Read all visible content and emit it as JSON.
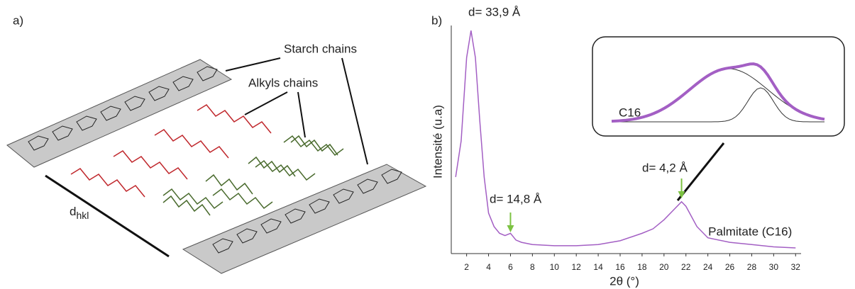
{
  "panel_a": {
    "label": "a)",
    "starch_label": "Starch chains",
    "alkyl_label": "Alkyls chains",
    "distance_symbol": "d",
    "distance_subscript": "hkl"
  },
  "chart_data": {
    "type": "line",
    "panel_label": "b)",
    "ylabel": "Intensité (u.a)",
    "xlabel": "2θ (°)",
    "x": [
      1,
      1.5,
      2,
      2.4,
      2.8,
      3.2,
      3.6,
      4,
      4.5,
      5,
      5.5,
      6,
      6.5,
      7,
      8,
      10,
      12,
      14,
      16,
      18,
      19,
      20,
      21,
      21.6,
      22,
      23,
      24,
      26,
      28,
      30,
      32
    ],
    "series": [
      {
        "name": "Palmitate (C16)",
        "color": "#a35fc4",
        "values": [
          34,
          50,
          87,
          99,
          87,
          59,
          34,
          18,
          12,
          9,
          8,
          9,
          6,
          5,
          4,
          3.5,
          3.5,
          4,
          5.7,
          9,
          11,
          15,
          20,
          23,
          21,
          12,
          7,
          5,
          4,
          3,
          2.5
        ]
      }
    ],
    "xlim": [
      0.6,
      32.5
    ],
    "ylim": [
      0,
      100
    ],
    "xticks": [
      2,
      4,
      6,
      8,
      10,
      12,
      14,
      16,
      18,
      20,
      22,
      24,
      26,
      28,
      30,
      32
    ],
    "annotations": [
      "d= 33,9 Å",
      "d= 14,8 Å",
      "d= 4,2 Å"
    ],
    "inset_label": "C16"
  }
}
